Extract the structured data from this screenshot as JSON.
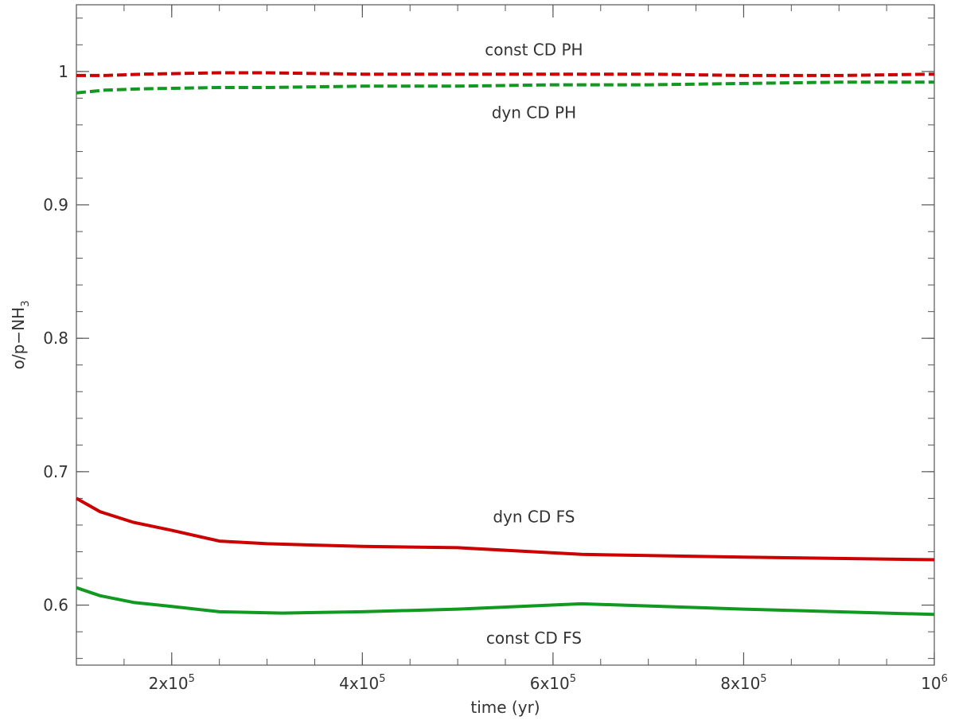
{
  "chart_data": {
    "type": "line",
    "xlabel": "time (yr)",
    "ylabel_main": "o/p−NH",
    "ylabel_sub": "3",
    "xlim": [
      100000,
      1000000
    ],
    "ylim": [
      0.555,
      1.05
    ],
    "x_ticks": [
      {
        "value": 200000,
        "mantissa": "2x10",
        "exp": "5"
      },
      {
        "value": 400000,
        "mantissa": "4x10",
        "exp": "5"
      },
      {
        "value": 600000,
        "mantissa": "6x10",
        "exp": "5"
      },
      {
        "value": 800000,
        "mantissa": "8x10",
        "exp": "5"
      },
      {
        "value": 1000000,
        "mantissa": "10",
        "exp": "6"
      }
    ],
    "x_minor_step": 50000,
    "y_ticks": [
      {
        "value": 0.6,
        "label": "0.6"
      },
      {
        "value": 0.7,
        "label": "0.7"
      },
      {
        "value": 0.8,
        "label": "0.8"
      },
      {
        "value": 0.9,
        "label": "0.9"
      },
      {
        "value": 1.0,
        "label": "1"
      }
    ],
    "y_minor_step": 0.02,
    "grid": false,
    "series": [
      {
        "color": "#cc0000",
        "dash": true,
        "x": [
          100000,
          130000,
          170000,
          250000,
          300000,
          400000,
          500000,
          600000,
          700000,
          800000,
          900000,
          1000000
        ],
        "y": [
          0.997,
          0.997,
          0.998,
          0.999,
          0.999,
          0.998,
          0.998,
          0.998,
          0.998,
          0.997,
          0.997,
          0.998
        ]
      },
      {
        "color": "#119922",
        "dash": true,
        "x": [
          100000,
          130000,
          170000,
          250000,
          300000,
          400000,
          500000,
          600000,
          700000,
          800000,
          900000,
          1000000
        ],
        "y": [
          0.984,
          0.986,
          0.987,
          0.988,
          0.988,
          0.989,
          0.989,
          0.99,
          0.99,
          0.991,
          0.992,
          0.992
        ]
      },
      {
        "color": "#cc0000",
        "dash": false,
        "x": [
          100000,
          125000,
          160000,
          200000,
          250000,
          300000,
          400000,
          500000,
          630000,
          800000,
          1000000
        ],
        "y": [
          0.68,
          0.67,
          0.662,
          0.656,
          0.648,
          0.646,
          0.644,
          0.643,
          0.638,
          0.636,
          0.634
        ]
      },
      {
        "color": "#119922",
        "dash": false,
        "x": [
          100000,
          125000,
          160000,
          200000,
          250000,
          316000,
          400000,
          500000,
          630000,
          800000,
          1000000
        ],
        "y": [
          0.613,
          0.607,
          0.602,
          0.599,
          0.595,
          0.594,
          0.595,
          0.597,
          0.601,
          0.597,
          0.593
        ]
      }
    ],
    "annotations": [
      {
        "text": "const CD PH",
        "x": 580000,
        "y": 1.012
      },
      {
        "text": "dyn CD PH",
        "x": 580000,
        "y": 0.965
      },
      {
        "text": "dyn CD FS",
        "x": 580000,
        "y": 0.662
      },
      {
        "text": "const CD FS",
        "x": 580000,
        "y": 0.571
      }
    ]
  }
}
